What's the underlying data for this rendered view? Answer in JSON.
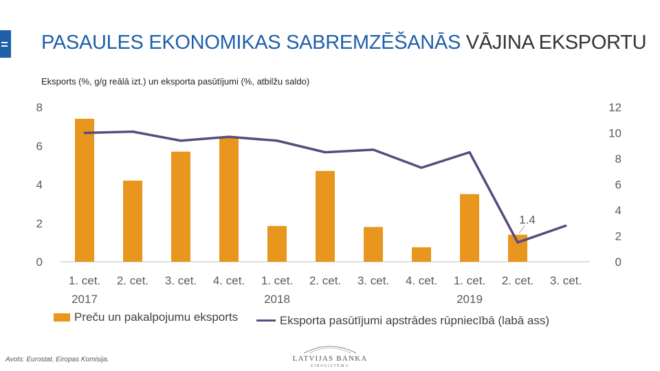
{
  "header": {
    "title_part1": "PASAULES EKONOMIKAS SABREMZĒŠANĀS",
    "title_part2": "VĀJINA EKSPORTU",
    "subtitle": "Eksports (%, g/g reālā izt.) un eksporta pasūtījumi (%, atbilžu saldo)"
  },
  "colors": {
    "accent": "#1f5fa9",
    "bars": "#e8961e",
    "line": "#5a4a7e"
  },
  "chart_data": {
    "type": "bar+line",
    "categories": [
      [
        "1. cet.",
        "2017"
      ],
      [
        "2. cet.",
        ""
      ],
      [
        "3. cet.",
        ""
      ],
      [
        "4. cet.",
        ""
      ],
      [
        "1. cet.",
        "2018"
      ],
      [
        "2. cet.",
        ""
      ],
      [
        "3. cet.",
        ""
      ],
      [
        "4. cet.",
        ""
      ],
      [
        "1. cet.",
        "2019"
      ],
      [
        "2. cet.",
        ""
      ],
      [
        "3. cet.",
        ""
      ]
    ],
    "series": [
      {
        "name": "Preču un pakalpojumu eksports",
        "type": "bar",
        "axis": "left",
        "values": [
          7.4,
          4.2,
          5.7,
          6.4,
          1.85,
          4.7,
          1.8,
          0.75,
          3.5,
          1.4,
          null
        ]
      },
      {
        "name": "Eksporta pasūtījumi apstrādes rūpniecībā (labā ass)",
        "type": "line",
        "axis": "right",
        "values": [
          10.0,
          10.1,
          9.4,
          9.7,
          9.4,
          8.5,
          8.7,
          7.3,
          8.5,
          1.5,
          2.8
        ]
      }
    ],
    "left_axis": {
      "min": 0,
      "max": 8,
      "ticks": [
        "0",
        "2",
        "4",
        "6",
        "8"
      ]
    },
    "right_axis": {
      "min": 0,
      "max": 12,
      "ticks": [
        "0",
        "2",
        "4",
        "6",
        "8",
        "10",
        "12"
      ]
    },
    "annotations": [
      {
        "text": "1.4",
        "series": 0,
        "index": 9
      }
    ],
    "grid": false,
    "legend_position": "bottom"
  },
  "footer": {
    "source": "Avots: Eurostat,  Eiropas Komisija.",
    "logo_name": "LATVIJAS BANKA",
    "logo_sub": "EIROSISTĒMA"
  }
}
